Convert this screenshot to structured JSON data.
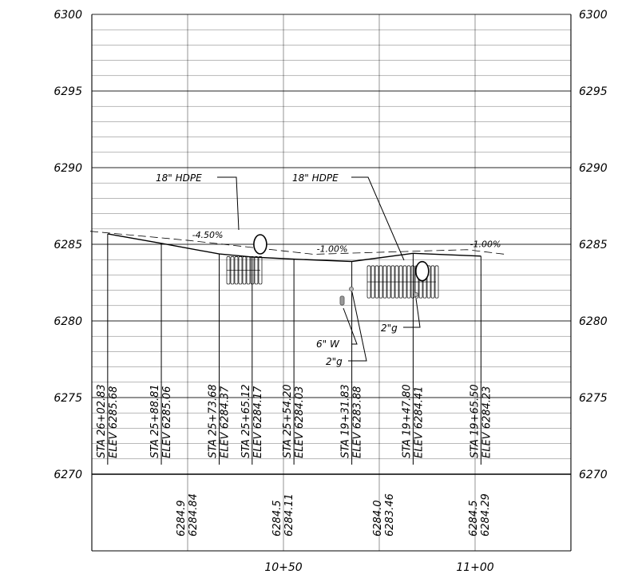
{
  "elevation_axis": {
    "min": 6270,
    "max": 6300,
    "major_step": 5,
    "minor_step": 1,
    "labels": [
      "6300",
      "6295",
      "6290",
      "6285",
      "6280",
      "6275",
      "6270"
    ]
  },
  "station_axis": {
    "labels": [
      "10+50",
      "11+00"
    ]
  },
  "stations": [
    {
      "sta": "STA 26+02.83",
      "elev": "ELEV 6285.68",
      "x_ft": -1.7,
      "ground": 6285.68
    },
    {
      "sta": "STA 25+88.81",
      "elev": "ELEV 6285.06",
      "x_ft": 12.3,
      "ground": 6285.06
    },
    {
      "sta": "STA 25+73.68",
      "elev": "ELEV 6284.37",
      "x_ft": 27.4,
      "ground": 6284.37
    },
    {
      "sta": "STA 25+65.12",
      "elev": "ELEV 6284.17",
      "x_ft": 36.0,
      "ground": 6284.17
    },
    {
      "sta": "STA 25+54.20",
      "elev": "ELEV 6284.03",
      "x_ft": 46.9,
      "ground": 6284.03
    },
    {
      "sta": "STA 19+31.83",
      "elev": "ELEV 6283.88",
      "x_ft": 62.0,
      "ground": 6283.88
    },
    {
      "sta": "STA 19+47.80",
      "elev": "ELEV 6284.41",
      "x_ft": 78.0,
      "ground": 6284.41
    },
    {
      "sta": "STA 19+65.50",
      "elev": "ELEV 6284.23",
      "x_ft": 95.7,
      "ground": 6284.23
    }
  ],
  "grades": [
    {
      "text": "-4.50%",
      "x_ft": 19.5,
      "elev": 6285.25
    },
    {
      "text": "-1.00%",
      "x_ft": 52.0,
      "elev": 6284.35
    },
    {
      "text": "-1.00%",
      "x_ft": 92.0,
      "elev": 6284.65
    }
  ],
  "bottom_band": [
    {
      "proposed": "6284.9",
      "existing": "6284.84",
      "x_ft": 25
    },
    {
      "proposed": "6284.5",
      "existing": "6284.11",
      "x_ft": 50
    },
    {
      "proposed": "6284.0",
      "existing": "6283.46",
      "x_ft": 75
    },
    {
      "proposed": "6284.5",
      "existing": "6284.29",
      "x_ft": 100
    }
  ],
  "callouts": [
    {
      "text": "18\" HDPE",
      "pipe_x_ft": 38,
      "pipe_elev": 6285.0
    },
    {
      "text": "18\" HDPE",
      "pipe_x_ft": 81,
      "pipe_elev": 6283.3
    },
    {
      "text": "6\" W",
      "pipe_x_ft": 65,
      "pipe_elev": 6281.2
    },
    {
      "text": "2\"g",
      "pipe_x_ft": 68,
      "pipe_elev": 6282.1
    },
    {
      "text": "2\"g",
      "pipe_x_ft": 84,
      "pipe_elev": 6281.7
    }
  ]
}
